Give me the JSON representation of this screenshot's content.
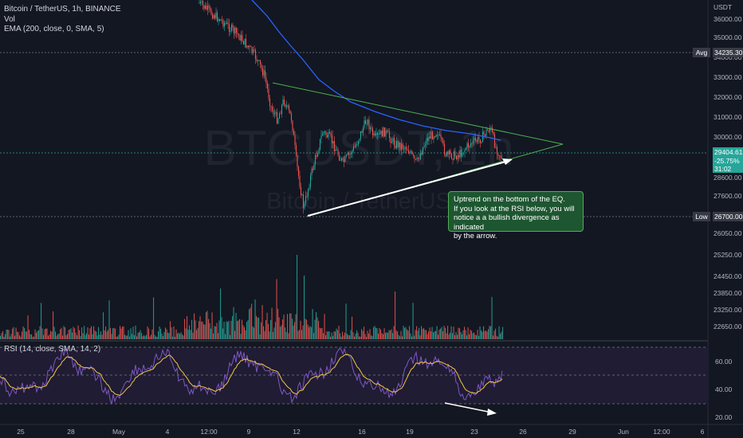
{
  "header": {
    "symbol_line": "Bitcoin / TetherUS, 1h, BINANCE",
    "vol_label": "Vol",
    "ema_label": "EMA (200, close, 0, SMA, 5)",
    "rsi_label": "RSI (14, close, SMA, 14, 2)",
    "currency": "USDT"
  },
  "watermark": {
    "ticker": "BTCUSDT, 1h",
    "name": "Bitcoin / TetherUS"
  },
  "price_scale": {
    "labels": [
      "36000.00",
      "35000.00",
      "34000.00",
      "33000.00",
      "32000.00",
      "31000.00",
      "30000.00",
      "28600.00",
      "27600.00",
      "26050.00",
      "25250.00",
      "24450.00",
      "23850.00",
      "23250.00",
      "22650.00"
    ],
    "avg_tag": "Avg",
    "avg_value": "34235.30",
    "low_tag": "Low",
    "low_value": "26700.00",
    "current_price": "29404.61",
    "change_pct": "-25.75%",
    "countdown": "31:02"
  },
  "rsi_scale": {
    "labels": [
      "60.00",
      "40.00",
      "20.00"
    ]
  },
  "time_axis": {
    "labels": [
      "25",
      "28",
      "May",
      "4",
      "12:00",
      "9",
      "12",
      "16",
      "19",
      "23",
      "26",
      "29",
      "Jun",
      "12:00",
      "6"
    ]
  },
  "annotation": {
    "lines": [
      "Uptrend on the bottom of the EQ.",
      "If you look at the RSI below, you will",
      "notice a a bullish divergence as indicated",
      "by the arrow."
    ]
  },
  "colors": {
    "background": "#131722",
    "up": "#26a69a",
    "down": "#ef5350",
    "ema": "#2962ff",
    "triangle": "#4caf50",
    "rsi": "#7e57c2",
    "rsi_ma": "#f5c542",
    "note_bg": "#1e5631",
    "grid": "#2a2e39"
  },
  "chart_data": [
    {
      "type": "candlestick",
      "title": "Bitcoin / TetherUS, 1h, BINANCE",
      "x_ticks": [
        "25",
        "28",
        "May",
        "4",
        "12:00",
        "9",
        "12",
        "16",
        "19",
        "23",
        "26",
        "29",
        "Jun",
        "12:00",
        "6"
      ],
      "y_axis_ticks": [
        36000,
        35000,
        34000,
        33000,
        32000,
        31000,
        30000
      ],
      "series": [
        {
          "name": "EMA (200, close, 0, SMA, 5)",
          "shape": "descending from about 38000 to about 30400"
        }
      ],
      "price_path_approx": [
        {
          "x": "May 5",
          "close": 37300
        },
        {
          "x": "May 6",
          "close": 36000
        },
        {
          "x": "May 7",
          "close": 34500
        },
        {
          "x": "May 8",
          "close": 33000
        },
        {
          "x": "May 9",
          "close": 31000
        },
        {
          "x": "May 10",
          "close": 31500
        },
        {
          "x": "May 11",
          "close": 29000
        },
        {
          "x": "May 12",
          "close": 27000
        },
        {
          "x": "May 13",
          "close": 29500
        },
        {
          "x": "May 15",
          "close": 30400
        },
        {
          "x": "May 16",
          "close": 29600
        },
        {
          "x": "May 17",
          "close": 30100
        },
        {
          "x": "May 19",
          "close": 29000
        },
        {
          "x": "May 20",
          "close": 29300
        },
        {
          "x": "May 21",
          "close": 29400
        },
        {
          "x": "May 23",
          "close": 30500
        },
        {
          "x": "May 24",
          "close": 29404.61
        }
      ],
      "horizontal_levels": {
        "avg": 34235.3,
        "low": 26700.0,
        "current": 29404.61
      }
    },
    {
      "type": "bar",
      "title": "Vol",
      "y_axis_ticks": [
        25250,
        24450,
        23850,
        23250,
        22650
      ]
    },
    {
      "type": "line",
      "title": "RSI (14, close, SMA, 14, 2)",
      "y_axis_ticks": [
        60,
        40,
        20
      ],
      "ylim": [
        18,
        80
      ],
      "bands": [
        30,
        50,
        70
      ]
    }
  ]
}
